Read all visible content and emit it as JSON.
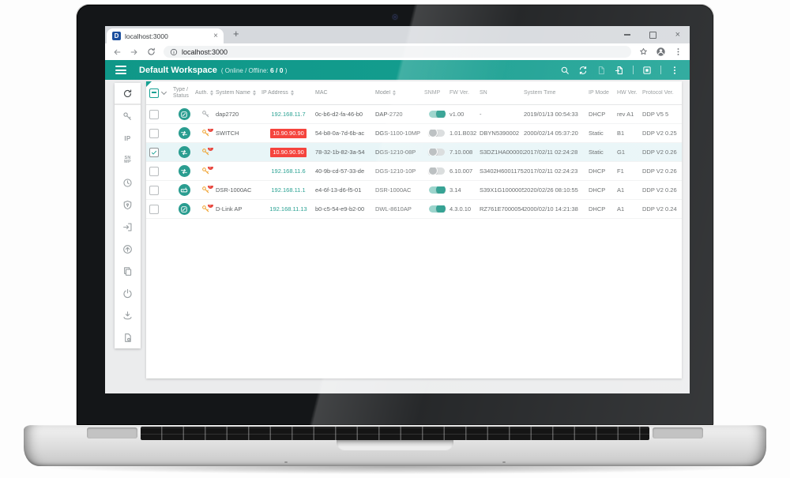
{
  "colors": {
    "accent_teal": "#17a193",
    "alert_red": "#f5443d",
    "ip_teal": "#2aa293",
    "selected_row": "#e8f5f7",
    "warn_key_orange": "#f0a22e"
  },
  "browser": {
    "tab_title": "localhost:3000",
    "url": "localhost:3000",
    "window_controls": [
      "minimize",
      "maximize",
      "close"
    ]
  },
  "workspace_header": {
    "title": "Default Workspace",
    "status_prefix": "( Online / Offline:",
    "status_count": "6 / 0",
    "status_suffix": ")",
    "actions": [
      {
        "icon": "search"
      },
      {
        "icon": "sync"
      },
      {
        "icon": "report",
        "disabled": true
      },
      {
        "icon": "export"
      },
      {
        "divider": true
      },
      {
        "icon": "firmware"
      },
      {
        "divider": true
      },
      {
        "icon": "more-vertical"
      }
    ]
  },
  "sidebar": {
    "items": [
      {
        "icon": "refresh",
        "primary": true
      },
      {
        "icon": "credentials-key"
      },
      {
        "icon": "ip-settings",
        "text": "IP"
      },
      {
        "icon": "snmp-settings",
        "text": "SN MP"
      },
      {
        "icon": "time-settings"
      },
      {
        "icon": "security-shield"
      },
      {
        "icon": "import"
      },
      {
        "icon": "firmware-upload"
      },
      {
        "icon": "copy-config"
      },
      {
        "icon": "power"
      },
      {
        "icon": "backup-restore"
      },
      {
        "icon": "log-file"
      }
    ]
  },
  "table": {
    "columns": [
      {
        "label": "Type / Status"
      },
      {
        "label": "Auth.",
        "sortable": true
      },
      {
        "label": "System Name",
        "sortable": true
      },
      {
        "label": "IP Address",
        "sortable": true
      },
      {
        "label": "MAC"
      },
      {
        "label": "Model",
        "sortable": true
      },
      {
        "label": "SNMP"
      },
      {
        "label": "FW Ver."
      },
      {
        "label": "SN"
      },
      {
        "label": "System Time"
      },
      {
        "label": "IP Mode"
      },
      {
        "label": "HW Ver."
      },
      {
        "label": "Protocol Ver."
      }
    ],
    "rows": [
      {
        "checked": false,
        "selected": false,
        "device_type": "access-point",
        "auth": "authorized",
        "system_name": "dap2720",
        "ip_address": "192.168.11.7",
        "ip_alert": false,
        "mac": "0c-b6-d2-fa-46-b0",
        "model": "DAP-2720",
        "snmp_on": true,
        "fw_version": "v1.00",
        "serial_number": "-",
        "system_time": "2019/01/13 00:54:33",
        "ip_mode": "DHCP",
        "hw_version": "rev A1",
        "protocol_version": "DDP V5 5"
      },
      {
        "checked": false,
        "selected": false,
        "device_type": "switch",
        "auth": "warning",
        "system_name": "SWITCH",
        "ip_address": "10.90.90.90",
        "ip_alert": true,
        "mac": "54-b8-0a-7d-6b-ac",
        "model": "DGS-1100-10MP",
        "snmp_on": false,
        "fw_version": "1.01.B032",
        "serial_number": "DBYN5390002",
        "system_time": "2000/02/14 05:37:20",
        "ip_mode": "Static",
        "hw_version": "B1",
        "protocol_version": "DDP V2 0.25"
      },
      {
        "checked": true,
        "selected": true,
        "device_type": "switch",
        "auth": "warning",
        "system_name": "",
        "ip_address": "10.90.90.90",
        "ip_alert": true,
        "mac": "78-32-1b-82-3a-54",
        "model": "DGS-1210-08P",
        "snmp_on": false,
        "fw_version": "7.10.008",
        "serial_number": "S3DZ1HA000002",
        "system_time": "2017/02/11 02:24:28",
        "ip_mode": "Static",
        "hw_version": "G1",
        "protocol_version": "DDP V2 0.26"
      },
      {
        "checked": false,
        "selected": false,
        "device_type": "switch",
        "auth": "warning",
        "system_name": "",
        "ip_address": "192.168.11.6",
        "ip_alert": false,
        "mac": "40-9b-cd-57-33-de",
        "model": "DGS-1210-10P",
        "snmp_on": false,
        "fw_version": "6.10.007",
        "serial_number": "S3402H6001175",
        "system_time": "2017/02/11 02:24:23",
        "ip_mode": "DHCP",
        "hw_version": "F1",
        "protocol_version": "DDP V2 0.26"
      },
      {
        "checked": false,
        "selected": false,
        "device_type": "router",
        "auth": "warning",
        "system_name": "DSR-1000AC",
        "ip_address": "192.168.11.1",
        "ip_alert": false,
        "mac": "e4-6f-13-d6-f5-01",
        "model": "DSR-1000AC",
        "snmp_on": true,
        "fw_version": "3.14",
        "serial_number": "S39X1G1000005",
        "system_time": "2020/02/26 08:10:55",
        "ip_mode": "DHCP",
        "hw_version": "A1",
        "protocol_version": "DDP V2 0.26"
      },
      {
        "checked": false,
        "selected": false,
        "device_type": "access-point",
        "auth": "warning",
        "system_name": "D-Link AP",
        "ip_address": "192.168.11.13",
        "ip_alert": false,
        "mac": "b0-c5-54-e9-b2-00",
        "model": "DWL-8610AP",
        "snmp_on": true,
        "fw_version": "4.3.0.10",
        "serial_number": "RZ761E7000054",
        "system_time": "2000/02/10 14:21:38",
        "ip_mode": "DHCP",
        "hw_version": "A1",
        "protocol_version": "DDP V2 0.24"
      }
    ]
  }
}
